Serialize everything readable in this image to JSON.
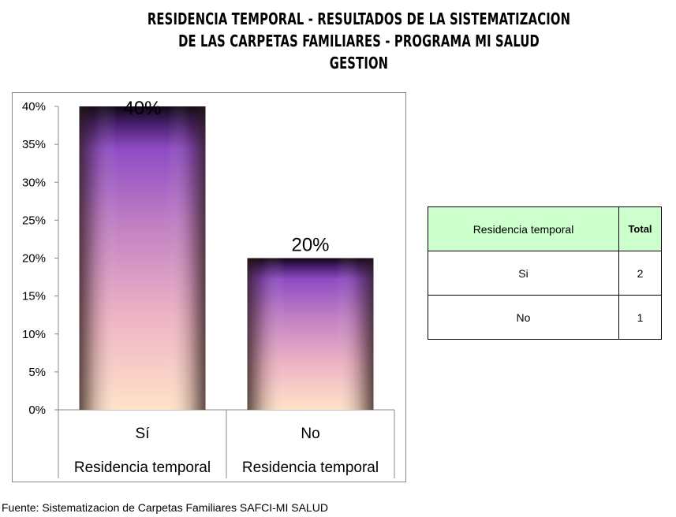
{
  "title": {
    "line1": "RESIDENCIA TEMPORAL - RESULTADOS DE LA SISTEMATIZACION",
    "line2": "DE LAS CARPETAS FAMILIARES - PROGRAMA MI SALUD",
    "line3": "GESTION"
  },
  "chart_data": {
    "type": "bar",
    "categories": [
      "Sí",
      "No"
    ],
    "category_group_label": "Residencia temporal",
    "values": [
      40,
      20
    ],
    "data_labels": [
      "40%",
      "20%"
    ],
    "y_ticks": [
      "0%",
      "5%",
      "10%",
      "15%",
      "20%",
      "25%",
      "30%",
      "35%",
      "40%"
    ],
    "ylim": [
      0,
      40
    ],
    "ytick_step": 5,
    "y_unit": "%",
    "grid": false,
    "legend": "none"
  },
  "table": {
    "headers": [
      "Residencia temporal",
      "Total"
    ],
    "rows": [
      [
        "Si",
        "2"
      ],
      [
        "No",
        "1"
      ]
    ],
    "header_bg": "#ccffcc"
  },
  "colors": {
    "bar_top": "#1a0a24",
    "bar_mid": "#8e4cc4",
    "bar_low": "#f0b8c8",
    "bar_bottom": "#ffe0c8"
  },
  "source": "Fuente: Sistematizacion de Carpetas Familiares SAFCI-MI SALUD"
}
